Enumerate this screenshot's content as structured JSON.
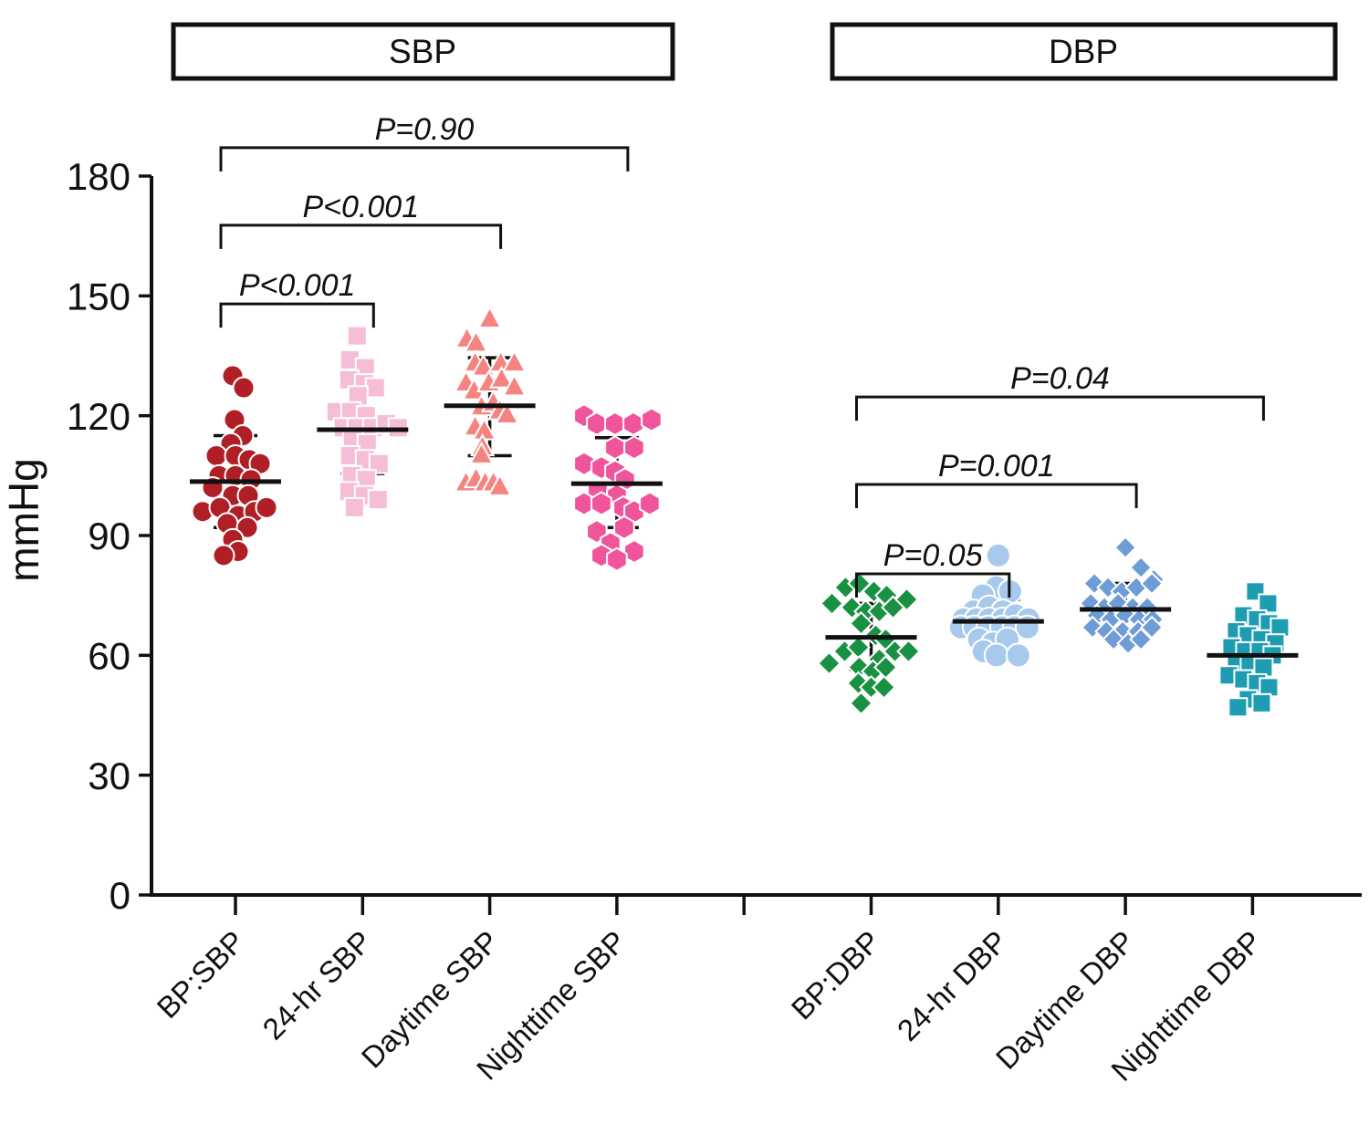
{
  "chart_data": {
    "type": "scatter",
    "title": "",
    "ylabel": "mmHg",
    "ylim": [
      0,
      180
    ],
    "yticks": [
      0,
      30,
      60,
      90,
      120,
      150,
      180
    ],
    "grid": false,
    "legend": "none",
    "axis_color": "#111111",
    "error_bar_style": "mean with sd whiskers",
    "panels": [
      {
        "title": "SBP"
      },
      {
        "title": "DBP"
      }
    ],
    "groups": [
      {
        "label": "BP:SBP",
        "panel": "SBP",
        "tick_index": 0,
        "marker": "circle",
        "color": "#B01F26",
        "marker_size": 11.5,
        "mean": 103.5,
        "sd_high": 115,
        "sd_low": 92,
        "points": [
          [
            -3,
            130
          ],
          [
            9,
            127
          ],
          [
            -1,
            119
          ],
          [
            8,
            115
          ],
          [
            -5,
            113
          ],
          [
            -21,
            110
          ],
          [
            0,
            110
          ],
          [
            15,
            109
          ],
          [
            27,
            108
          ],
          [
            -18,
            105
          ],
          [
            0,
            105
          ],
          [
            17,
            104
          ],
          [
            -25,
            102
          ],
          [
            -3,
            100
          ],
          [
            14,
            100
          ],
          [
            -36,
            96
          ],
          [
            -17,
            97
          ],
          [
            3,
            95
          ],
          [
            21,
            96
          ],
          [
            34,
            97
          ],
          [
            -9,
            93
          ],
          [
            13,
            92
          ],
          [
            -3,
            89
          ],
          [
            3,
            86
          ],
          [
            -13,
            85
          ]
        ]
      },
      {
        "label": "24-hr SBP",
        "panel": "SBP",
        "tick_index": 1,
        "marker": "square",
        "color": "#F6BED6",
        "marker_size": 21,
        "mean": 116.5,
        "sd_high": 128,
        "sd_low": 105.5,
        "points": [
          [
            -6,
            140
          ],
          [
            -14,
            134
          ],
          [
            3,
            132
          ],
          [
            -15,
            129
          ],
          [
            2,
            128
          ],
          [
            14,
            127
          ],
          [
            -5,
            125
          ],
          [
            -29,
            121
          ],
          [
            -13,
            121
          ],
          [
            4,
            120
          ],
          [
            -21,
            117
          ],
          [
            -6,
            117
          ],
          [
            11,
            117
          ],
          [
            26,
            118
          ],
          [
            39,
            117
          ],
          [
            -11,
            114
          ],
          [
            5,
            113
          ],
          [
            -14,
            110
          ],
          [
            3,
            109
          ],
          [
            18,
            108
          ],
          [
            -12,
            105
          ],
          [
            4,
            104
          ],
          [
            -15,
            101
          ],
          [
            2,
            100
          ],
          [
            17,
            99
          ],
          [
            -9,
            97
          ]
        ]
      },
      {
        "label": "Daytime SBP",
        "panel": "SBP",
        "tick_index": 2,
        "marker": "triangle",
        "color": "#F5837F",
        "marker_size": 24,
        "mean": 122.5,
        "sd_high": 134.5,
        "sd_low": 110,
        "points": [
          [
            0,
            144
          ],
          [
            -25,
            139
          ],
          [
            -15,
            138
          ],
          [
            -16,
            133
          ],
          [
            -7,
            132
          ],
          [
            12,
            133
          ],
          [
            27,
            133
          ],
          [
            -26,
            128
          ],
          [
            -17,
            126
          ],
          [
            -1,
            128
          ],
          [
            13,
            129
          ],
          [
            27,
            127
          ],
          [
            -9,
            122
          ],
          [
            4,
            123
          ],
          [
            11,
            121
          ],
          [
            19,
            120
          ],
          [
            -16,
            117
          ],
          [
            -6,
            116
          ],
          [
            -8,
            112
          ],
          [
            -9,
            110
          ],
          [
            -26,
            103
          ],
          [
            -15,
            104
          ],
          [
            -5,
            103
          ],
          [
            4,
            103
          ],
          [
            11,
            102
          ]
        ]
      },
      {
        "label": "Nighttime SBP",
        "panel": "SBP",
        "tick_index": 3,
        "marker": "hexagon",
        "color": "#F0549B",
        "marker_size": 12.5,
        "mean": 103,
        "sd_high": 114.5,
        "sd_low": 92,
        "points": [
          [
            -36,
            120
          ],
          [
            -22,
            118
          ],
          [
            -2,
            118
          ],
          [
            18,
            118
          ],
          [
            38,
            119
          ],
          [
            -2,
            112
          ],
          [
            19,
            112
          ],
          [
            -36,
            108
          ],
          [
            -17,
            107
          ],
          [
            -2,
            106
          ],
          [
            9,
            104
          ],
          [
            -21,
            101
          ],
          [
            0,
            100
          ],
          [
            -36,
            98
          ],
          [
            -17,
            98
          ],
          [
            7,
            97
          ],
          [
            19,
            96
          ],
          [
            36,
            98
          ],
          [
            -22,
            91
          ],
          [
            -7,
            88
          ],
          [
            19,
            86
          ],
          [
            -17,
            85
          ],
          [
            0,
            84
          ],
          [
            8,
            92
          ]
        ]
      },
      {
        "label": "BP:DBP",
        "panel": "DBP",
        "tick_index": 5,
        "marker": "diamond",
        "color": "#199142",
        "marker_size": 12,
        "mean": 64.5,
        "sd_high": 73,
        "sd_low": 56.5,
        "points": [
          [
            -28,
            77
          ],
          [
            -13,
            78
          ],
          [
            3,
            76
          ],
          [
            17,
            75
          ],
          [
            -43,
            73
          ],
          [
            -21,
            72
          ],
          [
            -6,
            71
          ],
          [
            9,
            71
          ],
          [
            24,
            72
          ],
          [
            39,
            74
          ],
          [
            -11,
            68
          ],
          [
            5,
            65
          ],
          [
            16,
            64
          ],
          [
            -29,
            61
          ],
          [
            -14,
            62
          ],
          [
            9,
            59
          ],
          [
            26,
            61
          ],
          [
            41,
            61
          ],
          [
            -46,
            58
          ],
          [
            -13,
            57
          ],
          [
            2,
            56
          ],
          [
            16,
            57
          ],
          [
            -14,
            53
          ],
          [
            0,
            52
          ],
          [
            14,
            52
          ],
          [
            -11,
            48
          ]
        ]
      },
      {
        "label": "24-hr DBP",
        "panel": "DBP",
        "tick_index": 6,
        "marker": "circle",
        "color": "#A7C9EC",
        "marker_size": 13,
        "mean": 68.5,
        "sd_high": 74,
        "sd_low": 62.5,
        "points": [
          [
            0,
            85
          ],
          [
            -2,
            77
          ],
          [
            13,
            76
          ],
          [
            -17,
            75
          ],
          [
            -27,
            71
          ],
          [
            -10,
            72
          ],
          [
            5,
            71
          ],
          [
            -38,
            69
          ],
          [
            -24,
            69
          ],
          [
            -10,
            69
          ],
          [
            5,
            69
          ],
          [
            19,
            70
          ],
          [
            33,
            69
          ],
          [
            -41,
            67
          ],
          [
            -26,
            67
          ],
          [
            -11,
            67
          ],
          [
            4,
            67
          ],
          [
            18,
            67
          ],
          [
            32,
            67
          ],
          [
            -21,
            64
          ],
          [
            -6,
            63
          ],
          [
            10,
            64
          ],
          [
            -16,
            61
          ],
          [
            -2,
            60
          ],
          [
            22,
            60
          ]
        ]
      },
      {
        "label": "Daytime DBP",
        "panel": "DBP",
        "tick_index": 7,
        "marker": "diamond",
        "color": "#6D9CD6",
        "marker_size": 11.5,
        "mean": 71.5,
        "sd_high": 78,
        "sd_low": 65.5,
        "points": [
          [
            0,
            87
          ],
          [
            17,
            82
          ],
          [
            31,
            79
          ],
          [
            -34,
            78
          ],
          [
            -19,
            77
          ],
          [
            -4,
            76
          ],
          [
            12,
            77
          ],
          [
            29,
            78
          ],
          [
            -38,
            73
          ],
          [
            -23,
            72
          ],
          [
            -8,
            73
          ],
          [
            8,
            72
          ],
          [
            24,
            72
          ],
          [
            -31,
            70
          ],
          [
            -16,
            69
          ],
          [
            0,
            70
          ],
          [
            15,
            69
          ],
          [
            30,
            69
          ],
          [
            -36,
            67
          ],
          [
            -21,
            66
          ],
          [
            -3,
            66
          ],
          [
            14,
            66
          ],
          [
            29,
            67
          ],
          [
            -13,
            64
          ],
          [
            3,
            63
          ],
          [
            17,
            64
          ]
        ]
      },
      {
        "label": "Nighttime DBP",
        "panel": "DBP",
        "tick_index": 8,
        "marker": "square",
        "color": "#1E9DB2",
        "marker_size": 20,
        "mean": 60,
        "sd_high": 67.5,
        "sd_low": 53,
        "points": [
          [
            3,
            76
          ],
          [
            17,
            73
          ],
          [
            -10,
            70
          ],
          [
            5,
            69
          ],
          [
            18,
            68
          ],
          [
            30,
            67
          ],
          [
            -18,
            66
          ],
          [
            -5,
            65
          ],
          [
            10,
            64
          ],
          [
            25,
            63
          ],
          [
            -23,
            62
          ],
          [
            -8,
            61
          ],
          [
            8,
            61
          ],
          [
            22,
            60
          ],
          [
            -18,
            58
          ],
          [
            -3,
            58
          ],
          [
            12,
            57
          ],
          [
            -26,
            55
          ],
          [
            -10,
            54
          ],
          [
            5,
            53
          ],
          [
            18,
            52
          ],
          [
            -5,
            49
          ],
          [
            10,
            48
          ],
          [
            -16,
            47
          ]
        ]
      }
    ],
    "comparisons": [
      {
        "from_group": 0,
        "to_group": 1,
        "p_label": "P<0.001",
        "bar_mmHg": 148
      },
      {
        "from_group": 0,
        "to_group": 2,
        "p_label": "P<0.001",
        "bar_mmHg": 167.7
      },
      {
        "from_group": 0,
        "to_group": 3,
        "p_label": "P=0.90",
        "bar_mmHg": 187.1
      },
      {
        "from_group": 4,
        "to_group": 5,
        "p_label": "P=0.05",
        "bar_mmHg": 80.4
      },
      {
        "from_group": 4,
        "to_group": 6,
        "p_label": "P=0.001",
        "bar_mmHg": 102.8
      },
      {
        "from_group": 4,
        "to_group": 7,
        "p_label": "P=0.04",
        "bar_mmHg": 124.7
      }
    ]
  }
}
